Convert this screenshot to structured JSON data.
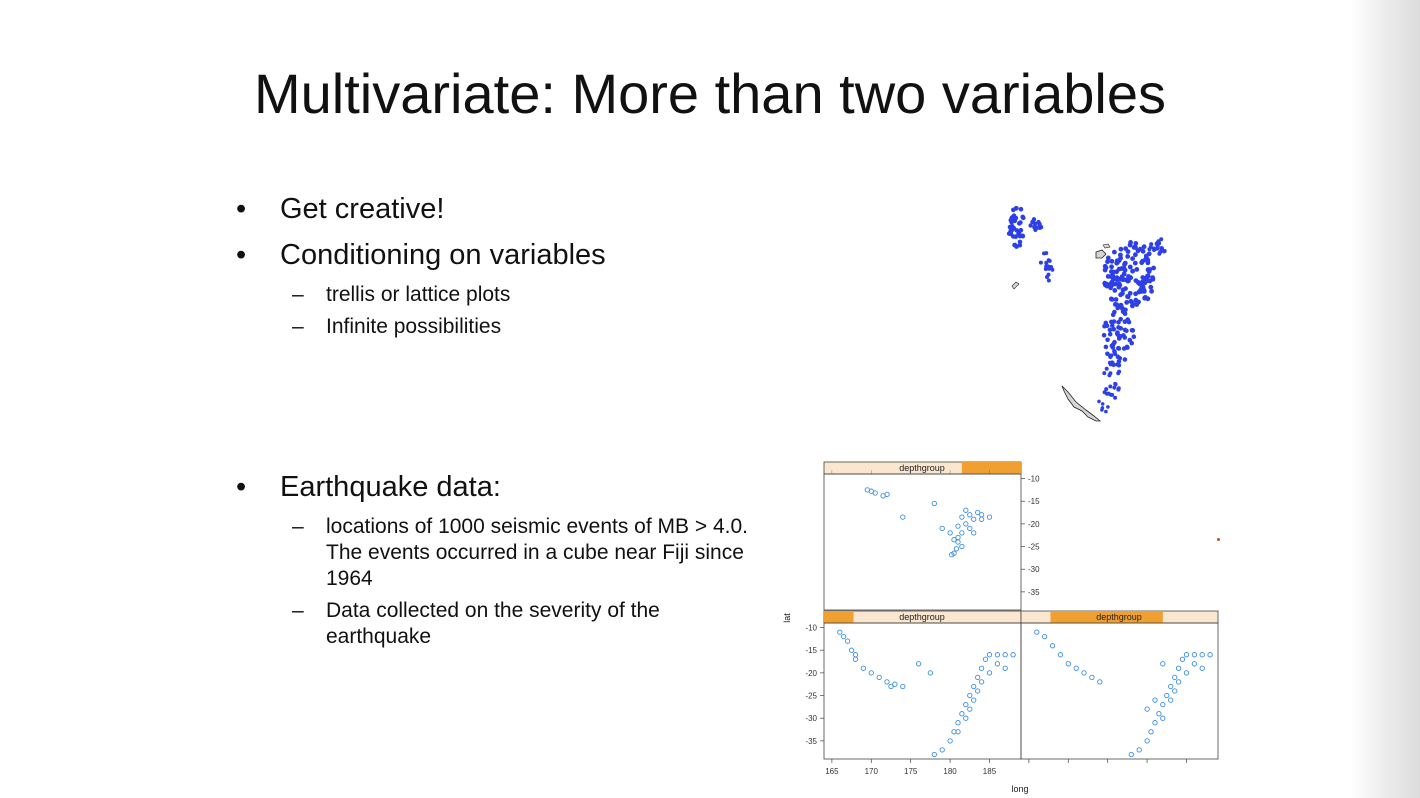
{
  "slide": {
    "title": "Multivariate: More than two variables",
    "bullets": [
      {
        "text": "Get creative!"
      },
      {
        "text": "Conditioning on variables",
        "sub": [
          "trellis or lattice plots",
          "Infinite possibilities"
        ]
      },
      {
        "text": "Earthquake data:",
        "sub": [
          "locations of 1000 seismic events of MB > 4.0. The events occurred in a cube near Fiji since 1964",
          "Data collected on the severity of the earthquake"
        ]
      }
    ]
  },
  "chart_data": [
    {
      "type": "scatter",
      "title": "",
      "point_color": "#2d3fe6",
      "points": "earthquake locations overlaid on coastline map"
    },
    {
      "type": "scatter",
      "strip_label": "depthgroup",
      "xlabel": "long",
      "ylabel": "lat",
      "xlim": [
        164,
        189
      ],
      "ylim": [
        -39,
        -9
      ],
      "x_ticks": [
        165,
        170,
        175,
        180,
        185
      ],
      "y_ticks": [
        -10,
        -15,
        -20,
        -25,
        -30,
        -35
      ],
      "point_color": "#3b8fe0",
      "strip_bg": "#fbe6cf",
      "strip_fill": "#f0a030",
      "panels": [
        {
          "position": "top-left",
          "strip_fill": [
            0.7,
            1.0
          ],
          "points": [
            [
              169.5,
              -12.5
            ],
            [
              170,
              -12.8
            ],
            [
              170.5,
              -13.2
            ],
            [
              171.5,
              -13.8
            ],
            [
              172,
              -13.5
            ],
            [
              174,
              -18.5
            ],
            [
              178,
              -15.5
            ],
            [
              179,
              -21
            ],
            [
              180,
              -22
            ],
            [
              180.5,
              -23.5
            ],
            [
              180.8,
              -25.5
            ],
            [
              180.5,
              -26.5
            ],
            [
              181,
              -24
            ],
            [
              181.5,
              -22
            ],
            [
              182,
              -20
            ],
            [
              182.5,
              -18
            ],
            [
              182,
              -17
            ],
            [
              181.5,
              -18.5
            ],
            [
              183,
              -19
            ],
            [
              183.5,
              -17.5
            ],
            [
              184,
              -19
            ],
            [
              184,
              -18
            ],
            [
              185,
              -18.5
            ],
            [
              181,
              -20.5
            ],
            [
              182.5,
              -21
            ],
            [
              181.5,
              -25
            ],
            [
              180.2,
              -26.8
            ],
            [
              183,
              -22
            ],
            [
              181,
              -23
            ]
          ]
        },
        {
          "position": "bottom-left",
          "strip_fill": [
            0.0,
            0.15
          ],
          "points": [
            [
              166,
              -11
            ],
            [
              166.5,
              -12
            ],
            [
              167,
              -13
            ],
            [
              167.5,
              -15
            ],
            [
              168,
              -16
            ],
            [
              168,
              -17
            ],
            [
              169,
              -19
            ],
            [
              170,
              -20
            ],
            [
              171,
              -21
            ],
            [
              172,
              -22
            ],
            [
              172.5,
              -23
            ],
            [
              173,
              -22.5
            ],
            [
              174,
              -23
            ],
            [
              176,
              -18
            ],
            [
              177.5,
              -20
            ],
            [
              178,
              -38
            ],
            [
              179,
              -37
            ],
            [
              180,
              -35
            ],
            [
              180.5,
              -33
            ],
            [
              181,
              -31
            ],
            [
              181.5,
              -29
            ],
            [
              182,
              -27
            ],
            [
              182.5,
              -25
            ],
            [
              183,
              -23
            ],
            [
              183.5,
              -21
            ],
            [
              184,
              -19
            ],
            [
              184.5,
              -17
            ],
            [
              185,
              -16
            ],
            [
              186,
              -16
            ],
            [
              187,
              -16
            ],
            [
              188,
              -16
            ],
            [
              185,
              -20
            ],
            [
              184,
              -22
            ],
            [
              183,
              -26
            ],
            [
              182,
              -30
            ],
            [
              181,
              -33
            ],
            [
              186,
              -18
            ],
            [
              187,
              -19
            ],
            [
              183.5,
              -24
            ],
            [
              182.5,
              -28
            ]
          ]
        },
        {
          "position": "bottom-right",
          "strip_fill": [
            0.15,
            0.72
          ],
          "points": [
            [
              166,
              -11
            ],
            [
              167,
              -12
            ],
            [
              168,
              -14
            ],
            [
              169,
              -16
            ],
            [
              170,
              -18
            ],
            [
              171,
              -19
            ],
            [
              172,
              -20
            ],
            [
              173,
              -21
            ],
            [
              174,
              -22
            ],
            [
              178,
              -38
            ],
            [
              179,
              -37
            ],
            [
              180,
              -35
            ],
            [
              180.5,
              -33
            ],
            [
              181,
              -31
            ],
            [
              181.5,
              -29
            ],
            [
              182,
              -27
            ],
            [
              182.5,
              -25
            ],
            [
              183,
              -23
            ],
            [
              183.5,
              -21
            ],
            [
              184,
              -19
            ],
            [
              184.5,
              -17
            ],
            [
              185,
              -16
            ],
            [
              186,
              -16
            ],
            [
              187,
              -16
            ],
            [
              188,
              -16
            ],
            [
              185,
              -20
            ],
            [
              184,
              -22
            ],
            [
              183,
              -26
            ],
            [
              182,
              -30
            ],
            [
              186,
              -18
            ],
            [
              187,
              -19
            ],
            [
              183.5,
              -24
            ],
            [
              181,
              -26
            ],
            [
              180,
              -28
            ],
            [
              182,
              -18
            ]
          ]
        }
      ]
    }
  ]
}
